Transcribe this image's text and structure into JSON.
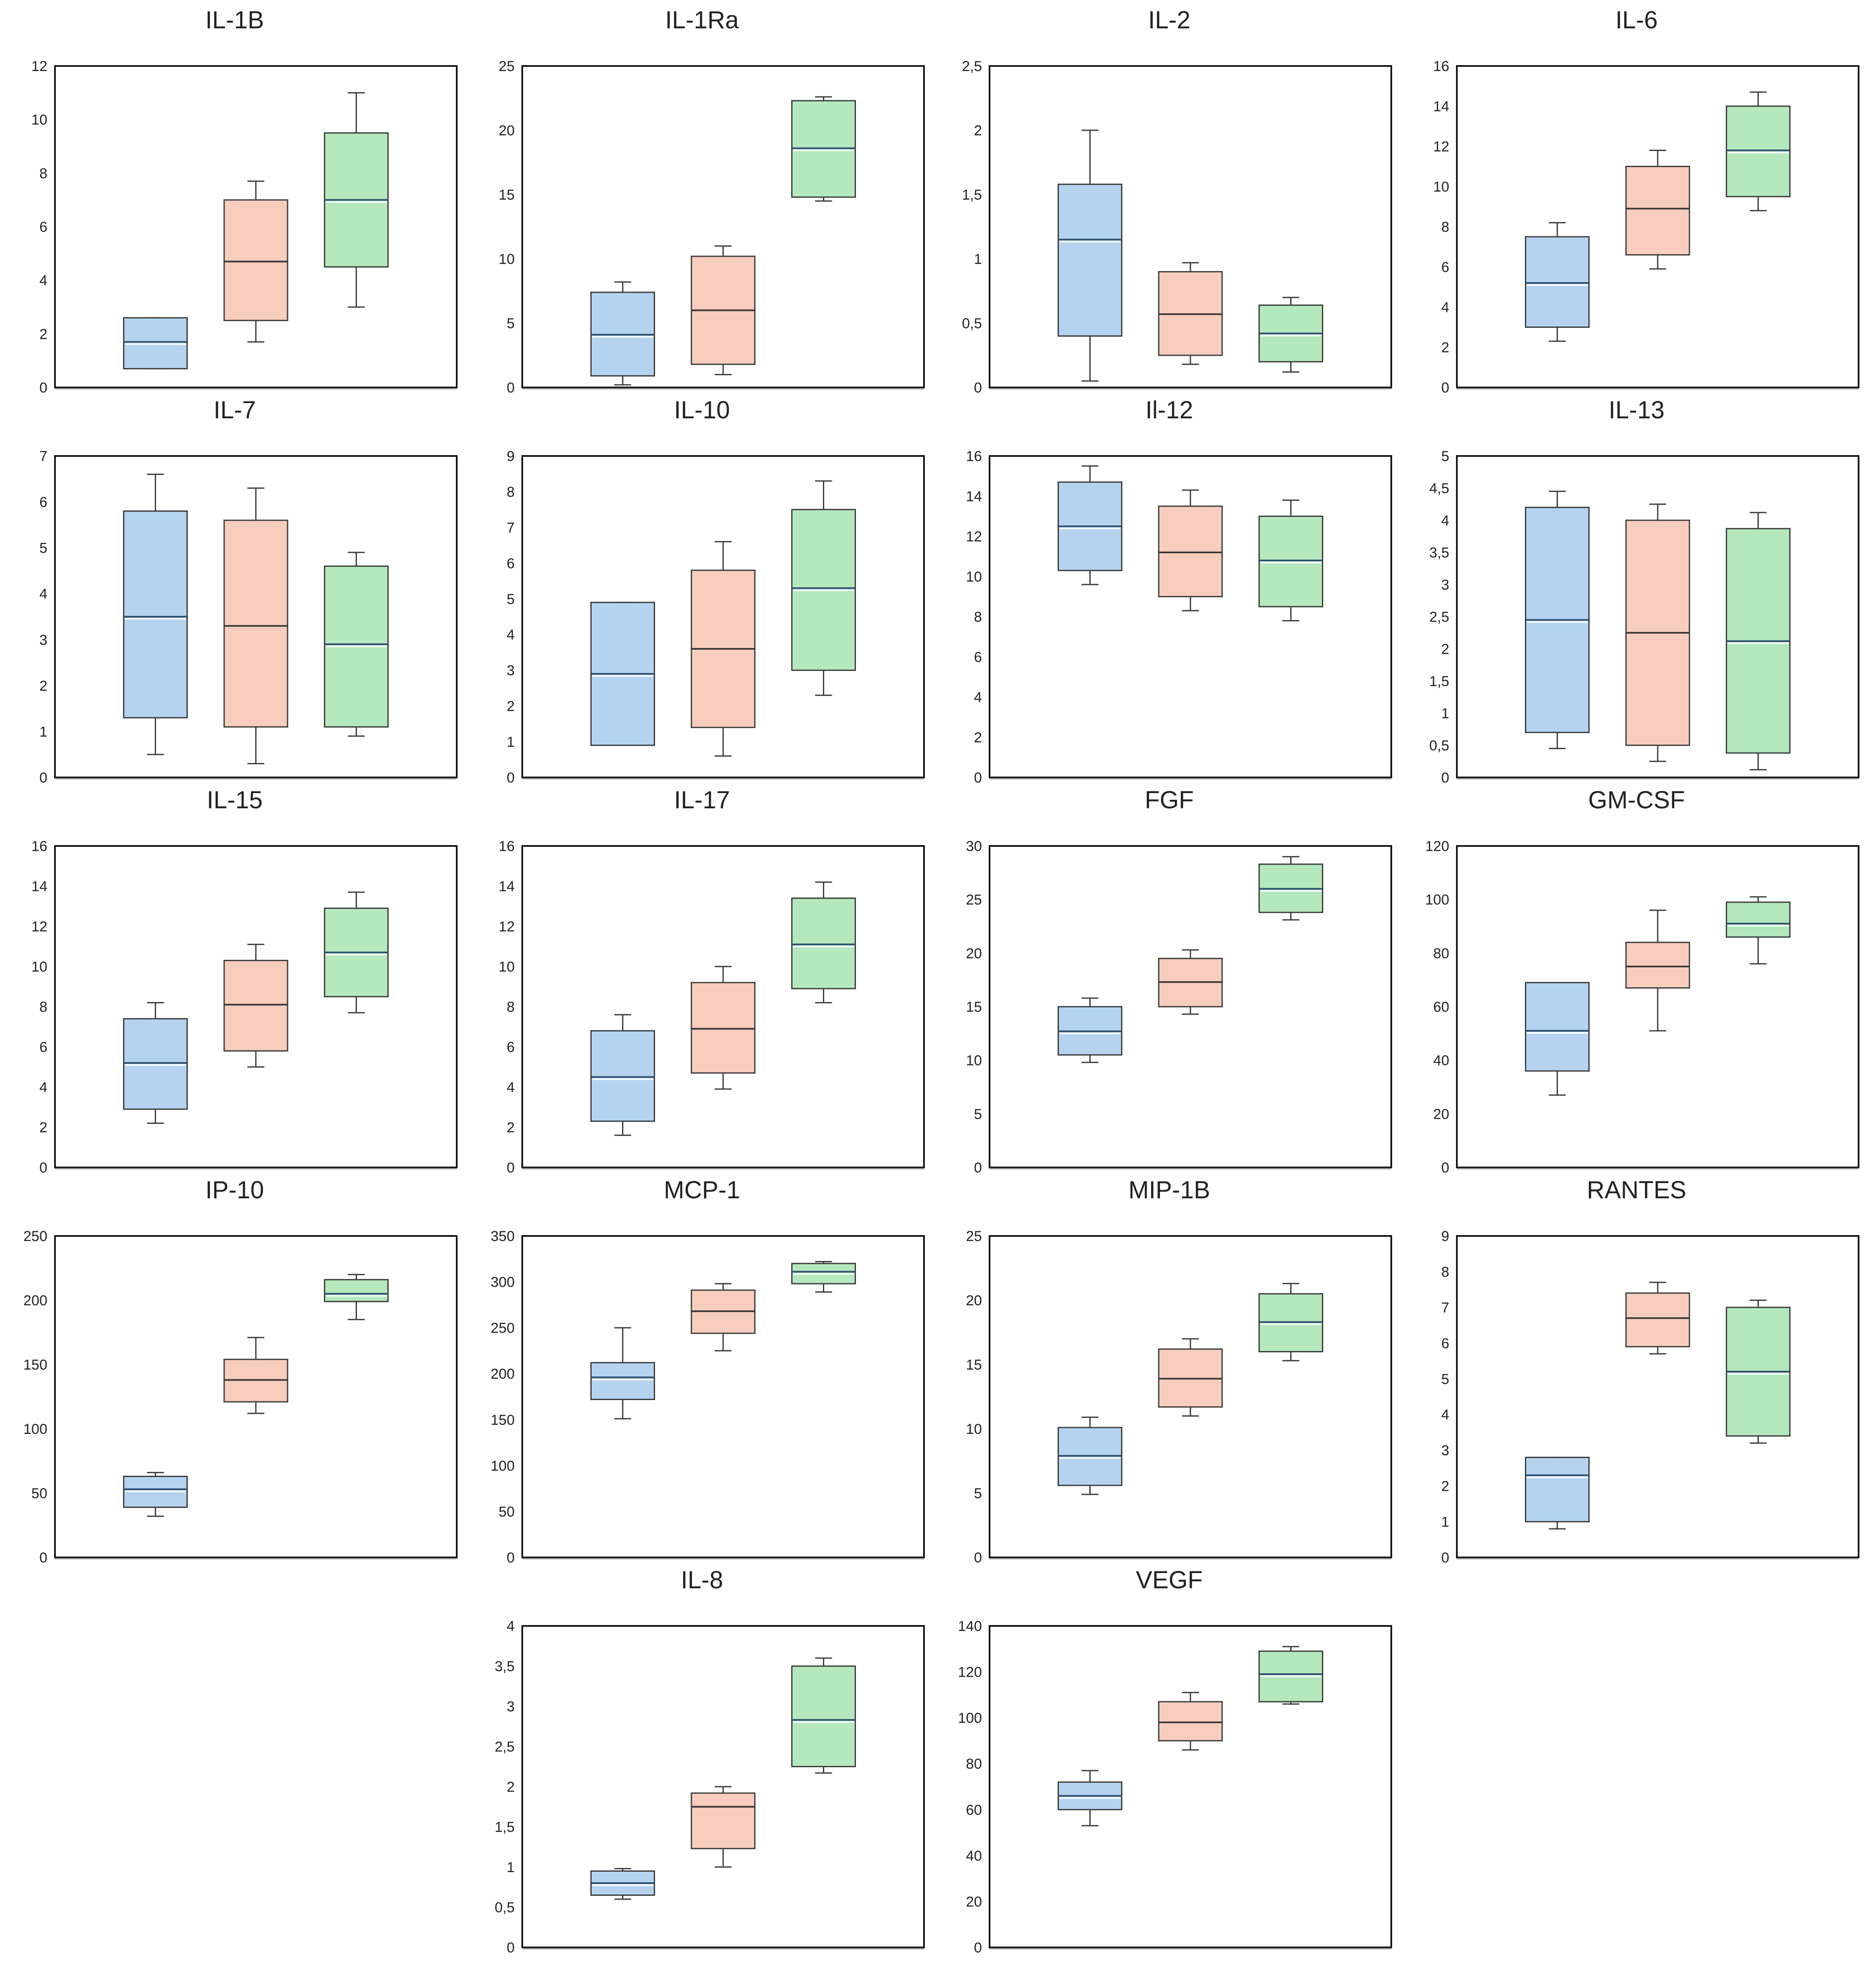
{
  "figure": {
    "series_colors": {
      "group1": {
        "fill": "#b5d3ef",
        "stroke": "#3a3a3a",
        "median": "#ffffff"
      },
      "group2": {
        "fill": "#f7cdbd",
        "stroke": "#3a3a3a",
        "median": "#3a3a3a"
      },
      "group3": {
        "fill": "#b5e8bd",
        "stroke": "#3a3a3a",
        "median": "#ffffff"
      }
    }
  },
  "chart_data": [
    {
      "type": "box",
      "title": "IL-1B",
      "ylim": [
        0,
        12
      ],
      "ticks": [
        "0",
        "2",
        "4",
        "6",
        "8",
        "10",
        "12"
      ],
      "groups": [
        {
          "min": 0.7,
          "q1": 0.7,
          "median": 1.7,
          "q3": 2.6,
          "max": 2.6
        },
        {
          "min": 1.7,
          "q1": 2.5,
          "median": 4.7,
          "q3": 7.0,
          "max": 7.7
        },
        {
          "min": 3.0,
          "q1": 4.5,
          "median": 7.0,
          "q3": 9.5,
          "max": 11.0
        }
      ]
    },
    {
      "type": "box",
      "title": "IL-1Ra",
      "ylim": [
        0,
        25
      ],
      "ticks": [
        "0",
        "5",
        "10",
        "15",
        "20",
        "25"
      ],
      "groups": [
        {
          "min": 0.2,
          "q1": 0.9,
          "median": 4.1,
          "q3": 7.4,
          "max": 8.2
        },
        {
          "min": 1.0,
          "q1": 1.8,
          "median": 6.0,
          "q3": 10.2,
          "max": 11.0
        },
        {
          "min": 14.5,
          "q1": 14.8,
          "median": 18.6,
          "q3": 22.3,
          "max": 22.6
        }
      ]
    },
    {
      "type": "box",
      "title": "IL-2",
      "ylim": [
        0,
        2.5
      ],
      "ticks": [
        "0",
        "0,5",
        "1",
        "1,5",
        "2",
        "2,5"
      ],
      "groups": [
        {
          "min": 0.05,
          "q1": 0.4,
          "median": 1.15,
          "q3": 1.58,
          "max": 2.0
        },
        {
          "min": 0.18,
          "q1": 0.25,
          "median": 0.57,
          "q3": 0.9,
          "max": 0.97
        },
        {
          "min": 0.12,
          "q1": 0.2,
          "median": 0.42,
          "q3": 0.64,
          "max": 0.7
        }
      ]
    },
    {
      "type": "box",
      "title": "IL-6",
      "ylim": [
        0,
        16
      ],
      "ticks": [
        "0",
        "2",
        "4",
        "6",
        "8",
        "10",
        "12",
        "14",
        "16"
      ],
      "groups": [
        {
          "min": 2.3,
          "q1": 3.0,
          "median": 5.2,
          "q3": 7.5,
          "max": 8.2
        },
        {
          "min": 5.9,
          "q1": 6.6,
          "median": 8.9,
          "q3": 11.0,
          "max": 11.8
        },
        {
          "min": 8.8,
          "q1": 9.5,
          "median": 11.8,
          "q3": 14.0,
          "max": 14.7
        }
      ]
    },
    {
      "type": "box",
      "title": "IL-7",
      "ylim": [
        0,
        7
      ],
      "ticks": [
        "0",
        "1",
        "2",
        "3",
        "4",
        "5",
        "6",
        "7"
      ],
      "groups": [
        {
          "min": 0.5,
          "q1": 1.3,
          "median": 3.5,
          "q3": 5.8,
          "max": 6.6
        },
        {
          "min": 0.3,
          "q1": 1.1,
          "median": 3.3,
          "q3": 5.6,
          "max": 6.3
        },
        {
          "min": 0.9,
          "q1": 1.1,
          "median": 2.9,
          "q3": 4.6,
          "max": 4.9
        }
      ]
    },
    {
      "type": "box",
      "title": "IL-10",
      "ylim": [
        0,
        9
      ],
      "ticks": [
        "0",
        "1",
        "2",
        "3",
        "4",
        "5",
        "6",
        "7",
        "8",
        "9"
      ],
      "groups": [
        {
          "min": 0.9,
          "q1": 0.9,
          "median": 2.9,
          "q3": 4.9,
          "max": 4.9
        },
        {
          "min": 0.6,
          "q1": 1.4,
          "median": 3.6,
          "q3": 5.8,
          "max": 6.6
        },
        {
          "min": 2.3,
          "q1": 3.0,
          "median": 5.3,
          "q3": 7.5,
          "max": 8.3
        }
      ]
    },
    {
      "type": "box",
      "title": "Il-12",
      "ylim": [
        0,
        16
      ],
      "ticks": [
        "0",
        "2",
        "4",
        "6",
        "8",
        "10",
        "12",
        "14",
        "16"
      ],
      "groups": [
        {
          "min": 9.6,
          "q1": 10.3,
          "median": 12.5,
          "q3": 14.7,
          "max": 15.5
        },
        {
          "min": 8.3,
          "q1": 9.0,
          "median": 11.2,
          "q3": 13.5,
          "max": 14.3
        },
        {
          "min": 7.8,
          "q1": 8.5,
          "median": 10.8,
          "q3": 13.0,
          "max": 13.8
        }
      ]
    },
    {
      "type": "box",
      "title": "IL-13",
      "ylim": [
        0,
        5
      ],
      "ticks": [
        "0",
        "0,5",
        "1",
        "1,5",
        "2",
        "2,5",
        "3",
        "3,5",
        "4",
        "4,5",
        "5"
      ],
      "groups": [
        {
          "min": 0.45,
          "q1": 0.7,
          "median": 2.45,
          "q3": 4.2,
          "max": 4.45
        },
        {
          "min": 0.25,
          "q1": 0.5,
          "median": 2.25,
          "q3": 4.0,
          "max": 4.25
        },
        {
          "min": 0.12,
          "q1": 0.38,
          "median": 2.12,
          "q3": 3.87,
          "max": 4.12
        }
      ]
    },
    {
      "type": "box",
      "title": "IL-15",
      "ylim": [
        0,
        16
      ],
      "ticks": [
        "0",
        "2",
        "4",
        "6",
        "8",
        "10",
        "12",
        "14",
        "16"
      ],
      "groups": [
        {
          "min": 2.2,
          "q1": 2.9,
          "median": 5.2,
          "q3": 7.4,
          "max": 8.2
        },
        {
          "min": 5.0,
          "q1": 5.8,
          "median": 8.1,
          "q3": 10.3,
          "max": 11.1
        },
        {
          "min": 7.7,
          "q1": 8.5,
          "median": 10.7,
          "q3": 12.9,
          "max": 13.7
        }
      ]
    },
    {
      "type": "box",
      "title": "IL-17",
      "ylim": [
        0,
        16
      ],
      "ticks": [
        "0",
        "2",
        "4",
        "6",
        "8",
        "10",
        "12",
        "14",
        "16"
      ],
      "groups": [
        {
          "min": 1.6,
          "q1": 2.3,
          "median": 4.5,
          "q3": 6.8,
          "max": 7.6
        },
        {
          "min": 3.9,
          "q1": 4.7,
          "median": 6.9,
          "q3": 9.2,
          "max": 10.0
        },
        {
          "min": 8.2,
          "q1": 8.9,
          "median": 11.1,
          "q3": 13.4,
          "max": 14.2
        }
      ]
    },
    {
      "type": "box",
      "title": "FGF",
      "ylim": [
        0,
        30
      ],
      "ticks": [
        "0",
        "5",
        "10",
        "15",
        "20",
        "25",
        "30"
      ],
      "groups": [
        {
          "min": 9.8,
          "q1": 10.5,
          "median": 12.7,
          "q3": 15.0,
          "max": 15.8
        },
        {
          "min": 14.3,
          "q1": 15.0,
          "median": 17.3,
          "q3": 19.5,
          "max": 20.3
        },
        {
          "min": 23.1,
          "q1": 23.8,
          "median": 26.0,
          "q3": 28.3,
          "max": 29.0
        }
      ]
    },
    {
      "type": "box",
      "title": "GM-CSF",
      "ylim": [
        0,
        120
      ],
      "ticks": [
        "0",
        "20",
        "40",
        "60",
        "80",
        "100",
        "120"
      ],
      "groups": [
        {
          "min": 27,
          "q1": 36,
          "median": 51,
          "q3": 69,
          "max": 69
        },
        {
          "min": 51,
          "q1": 67,
          "median": 75,
          "q3": 84,
          "max": 96
        },
        {
          "min": 76,
          "q1": 86,
          "median": 91,
          "q3": 99,
          "max": 101
        }
      ]
    },
    {
      "type": "box",
      "title": "IP-10",
      "ylim": [
        0,
        250
      ],
      "ticks": [
        "0",
        "50",
        "100",
        "150",
        "200",
        "250"
      ],
      "groups": [
        {
          "min": 32,
          "q1": 39,
          "median": 53,
          "q3": 63,
          "max": 66
        },
        {
          "min": 112,
          "q1": 121,
          "median": 138,
          "q3": 154,
          "max": 171
        },
        {
          "min": 185,
          "q1": 199,
          "median": 205,
          "q3": 216,
          "max": 220
        }
      ]
    },
    {
      "type": "box",
      "title": "MCP-1",
      "ylim": [
        0,
        350
      ],
      "ticks": [
        "0",
        "50",
        "100",
        "150",
        "200",
        "250",
        "300",
        "350"
      ],
      "groups": [
        {
          "min": 151,
          "q1": 172,
          "median": 196,
          "q3": 212,
          "max": 250
        },
        {
          "min": 225,
          "q1": 244,
          "median": 268,
          "q3": 291,
          "max": 298
        },
        {
          "min": 289,
          "q1": 298,
          "median": 311,
          "q3": 320,
          "max": 322
        }
      ]
    },
    {
      "type": "box",
      "title": "MIP-1B",
      "ylim": [
        0,
        25
      ],
      "ticks": [
        "0",
        "5",
        "10",
        "15",
        "20",
        "25"
      ],
      "groups": [
        {
          "min": 4.9,
          "q1": 5.6,
          "median": 7.9,
          "q3": 10.1,
          "max": 10.9
        },
        {
          "min": 11.0,
          "q1": 11.7,
          "median": 13.9,
          "q3": 16.2,
          "max": 17.0
        },
        {
          "min": 15.3,
          "q1": 16.0,
          "median": 18.3,
          "q3": 20.5,
          "max": 21.3
        }
      ]
    },
    {
      "type": "box",
      "title": "RANTES",
      "ylim": [
        0,
        9
      ],
      "ticks": [
        "0",
        "1",
        "2",
        "3",
        "4",
        "5",
        "6",
        "7",
        "8",
        "9"
      ],
      "groups": [
        {
          "min": 0.8,
          "q1": 1.0,
          "median": 2.3,
          "q3": 2.8,
          "max": 2.8
        },
        {
          "min": 5.7,
          "q1": 5.9,
          "median": 6.7,
          "q3": 7.4,
          "max": 7.7
        },
        {
          "min": 3.2,
          "q1": 3.4,
          "median": 5.2,
          "q3": 7.0,
          "max": 7.2
        }
      ]
    },
    {
      "type": "box",
      "title": "IL-8",
      "ylim": [
        0,
        4
      ],
      "ticks": [
        "0",
        "0,5",
        "1",
        "1,5",
        "2",
        "2,5",
        "3",
        "3,5",
        "4"
      ],
      "groups": [
        {
          "min": 0.6,
          "q1": 0.65,
          "median": 0.8,
          "q3": 0.95,
          "max": 0.98
        },
        {
          "min": 1.0,
          "q1": 1.23,
          "median": 1.75,
          "q3": 1.92,
          "max": 2.0
        },
        {
          "min": 2.17,
          "q1": 2.25,
          "median": 2.83,
          "q3": 3.5,
          "max": 3.6
        }
      ]
    },
    {
      "type": "box",
      "title": "VEGF",
      "ylim": [
        0,
        140
      ],
      "ticks": [
        "0",
        "20",
        "40",
        "60",
        "80",
        "100",
        "120",
        "140"
      ],
      "groups": [
        {
          "min": 53,
          "q1": 60,
          "median": 66,
          "q3": 72,
          "max": 77
        },
        {
          "min": 86,
          "q1": 90,
          "median": 98,
          "q3": 107,
          "max": 111
        },
        {
          "min": 106,
          "q1": 107,
          "median": 119,
          "q3": 129,
          "max": 131
        }
      ]
    }
  ]
}
